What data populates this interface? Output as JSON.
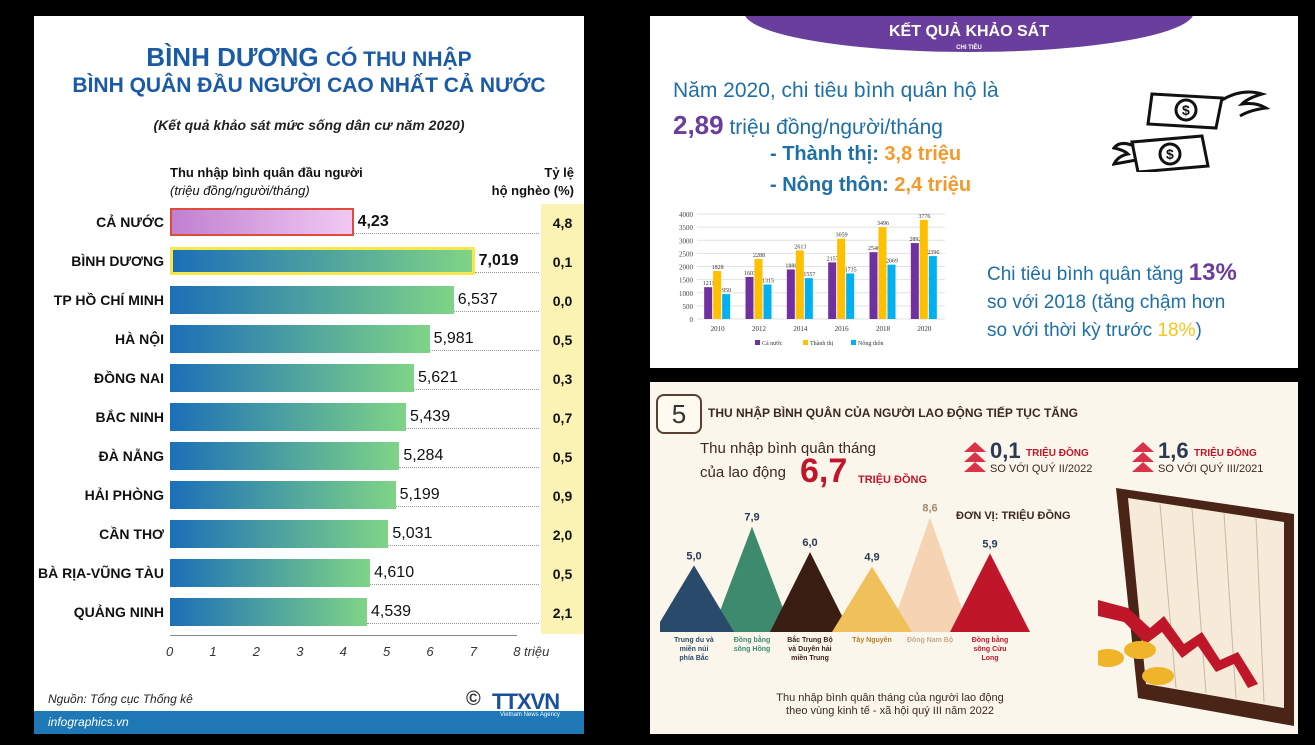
{
  "left_panel": {
    "title_line1_a": "BÌNH DƯƠNG",
    "title_line1_b": "CÓ THU NHẬP",
    "title_line2": "BÌNH QUÂN ĐẦU NGƯỜI CAO NHẤT CẢ NƯỚC",
    "subtitle": "(Kết quả khảo sát mức sống dân cư năm 2020)",
    "col1_title": "Thu nhập bình quân đầu người",
    "col1_unit": "(triệu đồng/người/tháng)",
    "col2_title": "Tỷ lệ",
    "col2_unit": "hộ nghèo (%)",
    "axis_unit": "8 triệu",
    "source": "Nguồn: Tổng cục Thống kê",
    "site": "infographics.vn",
    "logo": "TTXVN",
    "logo_sub": "Vietnam News Agency",
    "copyright": "©"
  },
  "right_top": {
    "banner": "KẾT QUẢ KHẢO SÁT",
    "banner_sub": "CHI TIÊU",
    "line1": "Năm 2020, chi tiêu bình quân hộ là",
    "value": "2,89",
    "line2": "triệu đồng/người/tháng",
    "urban_label": "- Thành thị: ",
    "urban_value": "3,8 triệu",
    "rural_label": "- Nông thôn: ",
    "rural_value": "2,4 triệu",
    "growth_a": "Chi tiêu bình quân tăng ",
    "growth_value": "13%",
    "growth_b": "so với 2018 (tăng chậm hơn",
    "growth_c": "so với thời kỳ trước ",
    "growth_prev": "18%",
    "growth_d": ")"
  },
  "right_bottom": {
    "number": "5",
    "title": "THU NHẬP BÌNH QUÂN CỦA NGƯỜI LAO ĐỘNG TIẾP TỤC TĂNG",
    "month_a": "Thu nhập bình quân tháng",
    "month_b": "của lao động",
    "month_value": "6,7",
    "month_unit": "TRIỆU ĐỒNG",
    "inc1_value": "0,1",
    "inc1_unit": "TRIỆU ĐỒNG",
    "inc1_note": "SO VỚI QUÝ II/2022",
    "inc2_value": "1,6",
    "inc2_unit": "TRIỆU ĐỒNG",
    "inc2_note": "SO VỚI QUÝ III/2021",
    "unit_note": "ĐƠN VỊ: TRIỆU ĐỒNG",
    "footer_a": "Thu nhập bình quân tháng của người lao động",
    "footer_b": "theo vùng kinh tế - xã hội quý III năm 2022"
  },
  "chart_data": [
    {
      "type": "bar",
      "orientation": "horizontal",
      "title": "BÌNH DƯƠNG CÓ THU NHẬP BÌNH QUÂN ĐẦU NGƯỜI CAO NHẤT CẢ NƯỚC",
      "xlabel": "Thu nhập bình quân đầu người (triệu đồng/người/tháng)",
      "xlim": [
        0,
        8
      ],
      "xticks": [
        "0",
        "1",
        "2",
        "3",
        "4",
        "5",
        "6",
        "7",
        "8 triệu"
      ],
      "categories": [
        "CẢ NƯỚC",
        "BÌNH DƯƠNG",
        "TP HỒ CHÍ MINH",
        "HÀ NỘI",
        "ĐỒNG NAI",
        "BẮC NINH",
        "ĐÀ NẴNG",
        "HẢI PHÒNG",
        "CẦN THƠ",
        "BÀ RỊA-VŨNG TÀU",
        "QUẢNG NINH"
      ],
      "values": [
        4.23,
        7.019,
        6.537,
        5.981,
        5.621,
        5.439,
        5.284,
        5.199,
        5.031,
        4.61,
        4.539
      ],
      "value_labels": [
        "4,23",
        "7,019",
        "6,537",
        "5,981",
        "5,621",
        "5,439",
        "5,284",
        "5,199",
        "5,031",
        "4,610",
        "4,539"
      ],
      "poverty_rate_labels": [
        "4,8",
        "0,1",
        "0,0",
        "0,5",
        "0,3",
        "0,7",
        "0,5",
        "0,9",
        "2,0",
        "0,5",
        "2,1"
      ],
      "colors": {
        "bar_start": "#1b6fb8",
        "bar_end": "#7fd487",
        "highlight": "#f6e84a",
        "national": "#c080d0"
      }
    },
    {
      "type": "bar",
      "categories": [
        "2010",
        "2012",
        "2014",
        "2016",
        "2018",
        "2020"
      ],
      "ylim": [
        0,
        4000
      ],
      "yticks": [
        "0",
        "500",
        "1000",
        "1500",
        "2000",
        "2500",
        "3000",
        "3500",
        "4000"
      ],
      "series": [
        {
          "name": "Cả nước",
          "values": [
            1211,
            1603,
            1888,
            2157,
            2546,
            2892
          ],
          "color": "#7030a0"
        },
        {
          "name": "Thành thị",
          "values": [
            1828,
            2288,
            2613,
            3059,
            3496,
            3776
          ],
          "color": "#ffc000"
        },
        {
          "name": "Nông thôn",
          "values": [
            950,
            1315,
            1557,
            1735,
            2069,
            2396
          ],
          "color": "#00b0f0"
        }
      ]
    },
    {
      "type": "area",
      "categories": [
        "Trung du và miền núi phía Bắc",
        "Đồng bằng sông Hồng",
        "Bắc Trung Bộ và Duyên hải miền Trung",
        "Tây Nguyên",
        "Đông Nam Bộ",
        "Đồng bằng sông Cửu Long"
      ],
      "values": [
        5.0,
        7.9,
        6.0,
        4.9,
        8.6,
        5.9
      ],
      "value_labels": [
        "5,0",
        "7,9",
        "6,0",
        "4,9",
        "8,6",
        "5,9"
      ],
      "colors": [
        "#2a4a6b",
        "#3e8a6e",
        "#3a1e14",
        "#f0c05a",
        "#f6d3b2",
        "#c0162a"
      ]
    }
  ]
}
